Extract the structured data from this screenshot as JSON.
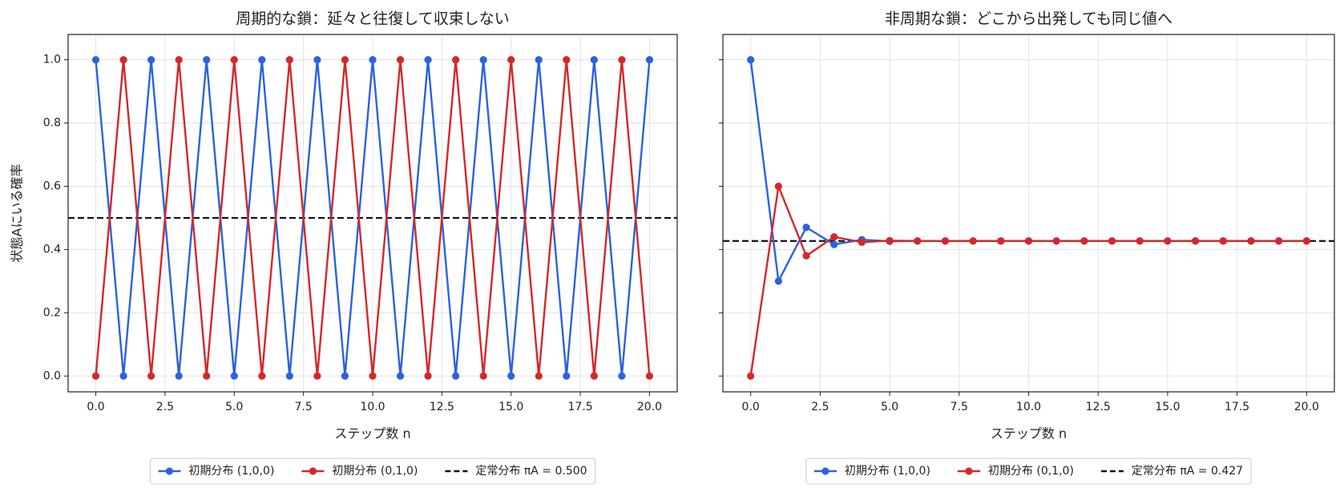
{
  "chart_data": [
    {
      "type": "line",
      "title": "周期的な鎖：延々と往復して収束しない",
      "xlabel": "ステップ数 n",
      "ylabel": "状態Aにいる確率",
      "x": [
        0,
        1,
        2,
        3,
        4,
        5,
        6,
        7,
        8,
        9,
        10,
        11,
        12,
        13,
        14,
        15,
        16,
        17,
        18,
        19,
        20
      ],
      "series": [
        {
          "name": "初期分布 (1,0,0)",
          "color": "#2a62e0",
          "values": [
            1,
            0,
            1,
            0,
            1,
            0,
            1,
            0,
            1,
            0,
            1,
            0,
            1,
            0,
            1,
            0,
            1,
            0,
            1,
            0,
            1
          ]
        },
        {
          "name": "初期分布 (0,1,0)",
          "color": "#d62728",
          "values": [
            0,
            1,
            0,
            1,
            0,
            1,
            0,
            1,
            0,
            1,
            0,
            1,
            0,
            1,
            0,
            1,
            0,
            1,
            0,
            1,
            0
          ]
        }
      ],
      "reference": {
        "name": "定常分布 πA = 0.500",
        "value": 0.5,
        "color": "#111111"
      },
      "xlim": [
        -1,
        21
      ],
      "xticks": [
        {
          "value": 0,
          "label": "0.0"
        },
        {
          "value": 2.5,
          "label": "2.5"
        },
        {
          "value": 5,
          "label": "5.0"
        },
        {
          "value": 7.5,
          "label": "7.5"
        },
        {
          "value": 10,
          "label": "10.0"
        },
        {
          "value": 12.5,
          "label": "12.5"
        },
        {
          "value": 15,
          "label": "15.0"
        },
        {
          "value": 17.5,
          "label": "17.5"
        },
        {
          "value": 20,
          "label": "20.0"
        }
      ],
      "ylim": [
        -0.05,
        1.08
      ],
      "yticks": [
        {
          "value": 0,
          "label": "0.0"
        },
        {
          "value": 0.2,
          "label": "0.2"
        },
        {
          "value": 0.4,
          "label": "0.4"
        },
        {
          "value": 0.6,
          "label": "0.6"
        },
        {
          "value": 0.8,
          "label": "0.8"
        },
        {
          "value": 1,
          "label": "1.0"
        }
      ],
      "grid": true,
      "legend": "lower center"
    },
    {
      "type": "line",
      "title": "非周期な鎖：どこから出発しても同じ値へ",
      "xlabel": "ステップ数 n",
      "x": [
        0,
        1,
        2,
        3,
        4,
        5,
        6,
        7,
        8,
        9,
        10,
        11,
        12,
        13,
        14,
        15,
        16,
        17,
        18,
        19,
        20
      ],
      "series": [
        {
          "name": "初期分布 (1,0,0)",
          "color": "#2a62e0",
          "values": [
            1,
            0.3,
            0.47,
            0.416,
            0.431,
            0.426,
            0.427,
            0.427,
            0.427,
            0.427,
            0.427,
            0.427,
            0.427,
            0.427,
            0.427,
            0.427,
            0.427,
            0.427,
            0.427,
            0.427,
            0.427
          ]
        },
        {
          "name": "初期分布 (0,1,0)",
          "color": "#d62728",
          "values": [
            0,
            0.6,
            0.38,
            0.44,
            0.423,
            0.428,
            0.427,
            0.427,
            0.427,
            0.427,
            0.427,
            0.427,
            0.427,
            0.427,
            0.427,
            0.427,
            0.427,
            0.427,
            0.427,
            0.427,
            0.427
          ]
        }
      ],
      "reference": {
        "name": "定常分布 πA = 0.427",
        "value": 0.427,
        "color": "#111111"
      },
      "xlim": [
        -1,
        21
      ],
      "xticks": [
        {
          "value": 0,
          "label": "0.0"
        },
        {
          "value": 2.5,
          "label": "2.5"
        },
        {
          "value": 5,
          "label": "5.0"
        },
        {
          "value": 7.5,
          "label": "7.5"
        },
        {
          "value": 10,
          "label": "10.0"
        },
        {
          "value": 12.5,
          "label": "12.5"
        },
        {
          "value": 15,
          "label": "15.0"
        },
        {
          "value": 17.5,
          "label": "17.5"
        },
        {
          "value": 20,
          "label": "20.0"
        }
      ],
      "ylim": [
        -0.05,
        1.08
      ],
      "yticks": [
        0,
        0.2,
        0.4,
        0.6,
        0.8,
        1
      ],
      "ytick_labels": false,
      "grid": true,
      "legend": "lower center"
    }
  ]
}
